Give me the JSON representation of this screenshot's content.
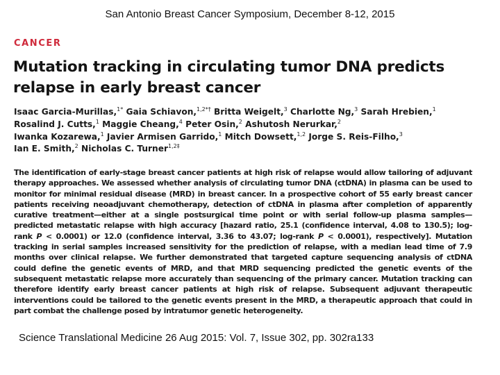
{
  "header": {
    "symposium": "San Antonio Breast Cancer Symposium, December 8-12, 2015"
  },
  "article": {
    "section": "CANCER",
    "title_line1": "Mutation tracking in circulating tumor DNA predicts",
    "title_line2": "relapse in early breast cancer",
    "authors": [
      {
        "name": "Isaac Garcia-Murillas,",
        "sup": "1",
        "mark": "*"
      },
      {
        "name": "Gaia Schiavon,",
        "sup": "1,2",
        "mark": "*†"
      },
      {
        "name": "Britta Weigelt,",
        "sup": "3",
        "mark": ""
      },
      {
        "name": "Charlotte Ng,",
        "sup": "3",
        "mark": ""
      },
      {
        "name": "Sarah Hrebien,",
        "sup": "1",
        "mark": ""
      },
      {
        "name": "Rosalind J. Cutts,",
        "sup": "1",
        "mark": ""
      },
      {
        "name": "Maggie Cheang,",
        "sup": "4",
        "mark": ""
      },
      {
        "name": "Peter Osin,",
        "sup": "2",
        "mark": ""
      },
      {
        "name": "Ashutosh Nerurkar,",
        "sup": "2",
        "mark": ""
      },
      {
        "name": "Iwanka Kozarewa,",
        "sup": "1",
        "mark": ""
      },
      {
        "name": "Javier Armisen Garrido,",
        "sup": "1",
        "mark": ""
      },
      {
        "name": "Mitch Dowsett,",
        "sup": "1,2",
        "mark": ""
      },
      {
        "name": "Jorge S. Reis-Filho,",
        "sup": "3",
        "mark": ""
      },
      {
        "name": "Ian E. Smith,",
        "sup": "2",
        "mark": ""
      },
      {
        "name": "Nicholas C. Turner",
        "sup": "1,2",
        "mark": "‡"
      }
    ],
    "abstract": {
      "part1": "The identification of early-stage breast cancer patients at high risk of relapse would allow tailoring of adjuvant therapy approaches. We assessed whether analysis of circulating tumor DNA (ctDNA) in plasma can be used to monitor for minimal residual disease (MRD) in breast cancer. In a prospective cohort of 55 early breast cancer patients receiving neoadjuvant chemotherapy, detection of ctDNA in plasma after completion of apparently curative treatment—either at a single postsurgical time point or with serial follow-up plasma samples—predicted metastatic relapse with high accuracy [hazard ratio, 25.1 (confidence interval, 4.08 to 130.5); log-rank ",
      "p1": "P",
      "part2": " < 0.0001) or 12.0 (confidence interval, 3.36 to 43.07; log-rank ",
      "p2": "P",
      "part3": " < 0.0001), respectively]. Mutation tracking in serial samples increased sensitivity for the prediction of relapse, with a median lead time of 7.9 months over clinical relapse. We further demonstrated that targeted capture sequencing analysis of ctDNA could define the genetic events of MRD, and that MRD sequencing predicted the genetic events of the subsequent metastatic relapse more accurately than sequencing of the primary cancer. Mutation tracking can therefore identify early breast cancer patients at high risk of relapse. Subsequent adjuvant therapeutic interventions could be tailored to the genetic events present in the MRD, a therapeutic approach that could in part combat the challenge posed by intratumor genetic heterogeneity."
    }
  },
  "citation": {
    "text": "Science Translational Medicine  26 Aug 2015: Vol. 7, Issue 302, pp. 302ra133"
  }
}
